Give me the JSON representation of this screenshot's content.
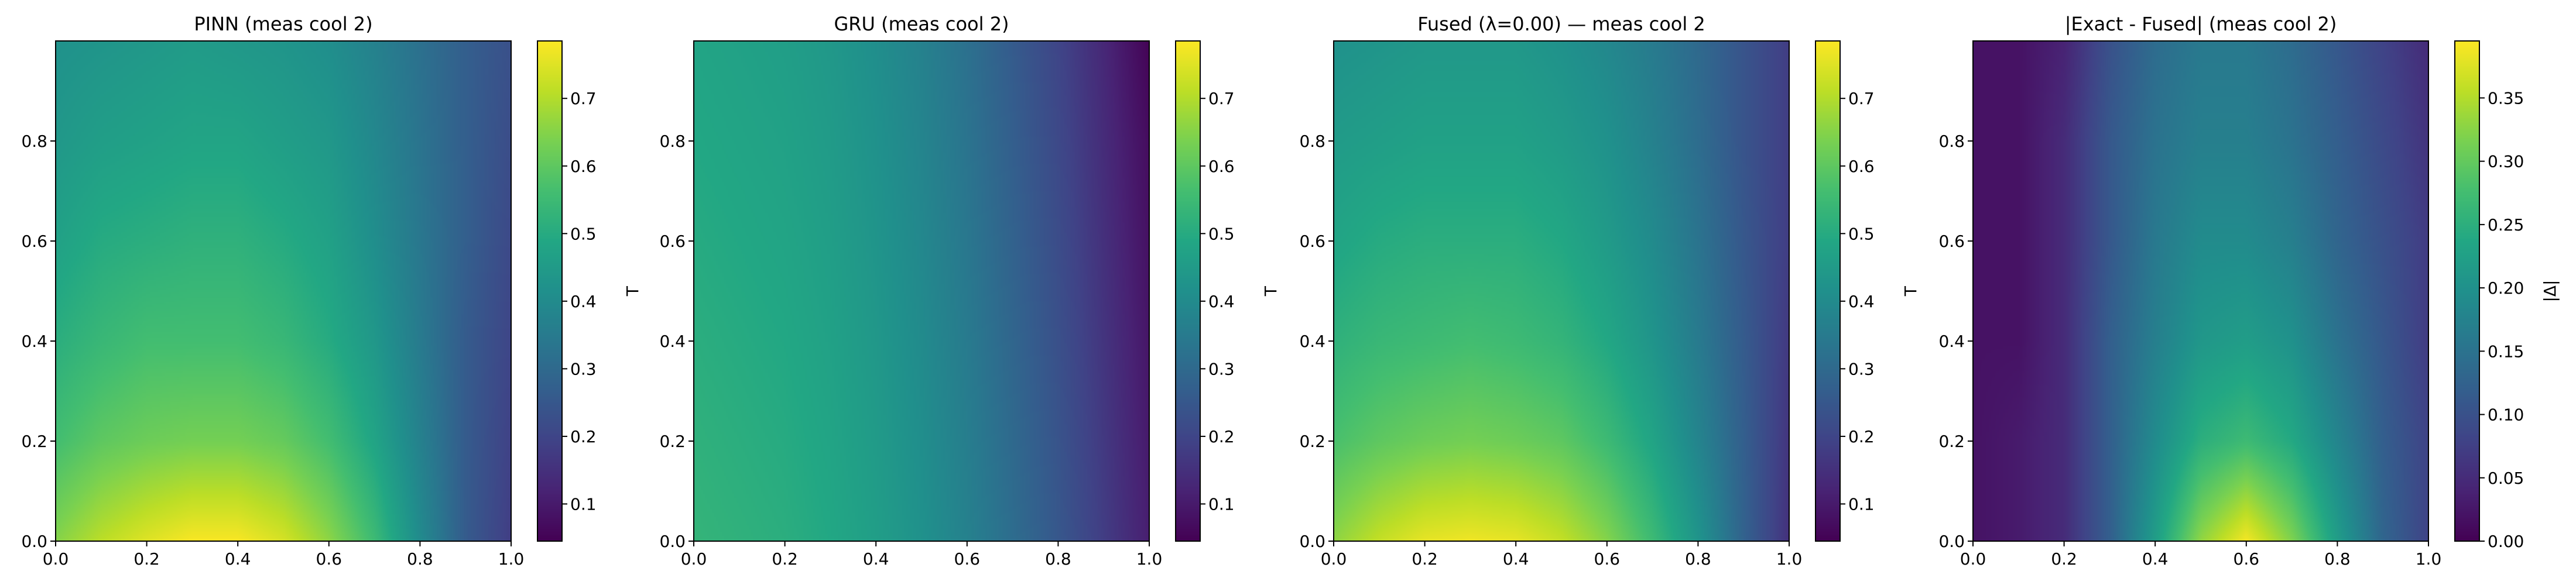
{
  "chart_data": [
    {
      "type": "heatmap",
      "title": "PINN (meas cool 2)",
      "xlabel": "",
      "ylabel": "",
      "colorbar_label": "T",
      "colormap": "viridis",
      "xlim": [
        0.0,
        1.0
      ],
      "ylim": [
        0.0,
        1.0
      ],
      "x_ticks": [
        "0.0",
        "0.2",
        "0.4",
        "0.6",
        "0.8",
        "1.0"
      ],
      "y_ticks": [
        "0.0",
        "0.2",
        "0.4",
        "0.6",
        "0.8"
      ],
      "clim": [
        0.045,
        0.785
      ],
      "colorbar_ticks": [
        "0.1",
        "0.2",
        "0.3",
        "0.4",
        "0.5",
        "0.6",
        "0.7"
      ],
      "x": [
        0.0,
        0.1,
        0.2,
        0.3,
        0.4,
        0.5,
        0.6,
        0.7,
        0.8,
        0.9,
        1.0
      ],
      "y": [
        0.0,
        0.2,
        0.4,
        0.6,
        0.8,
        1.0
      ],
      "z": [
        [
          0.65,
          0.71,
          0.75,
          0.78,
          0.78,
          0.74,
          0.66,
          0.55,
          0.4,
          0.26,
          0.18
        ],
        [
          0.56,
          0.6,
          0.62,
          0.63,
          0.63,
          0.61,
          0.56,
          0.48,
          0.37,
          0.26,
          0.19
        ],
        [
          0.51,
          0.54,
          0.56,
          0.56,
          0.56,
          0.54,
          0.5,
          0.44,
          0.35,
          0.26,
          0.2
        ],
        [
          0.47,
          0.5,
          0.51,
          0.52,
          0.52,
          0.5,
          0.47,
          0.41,
          0.34,
          0.27,
          0.21
        ],
        [
          0.44,
          0.46,
          0.47,
          0.48,
          0.48,
          0.46,
          0.44,
          0.39,
          0.33,
          0.27,
          0.22
        ],
        [
          0.42,
          0.43,
          0.44,
          0.45,
          0.44,
          0.43,
          0.41,
          0.37,
          0.32,
          0.27,
          0.23
        ]
      ]
    },
    {
      "type": "heatmap",
      "title": "GRU (meas cool 2)",
      "xlabel": "",
      "ylabel": "",
      "colorbar_label": "T",
      "colormap": "viridis",
      "xlim": [
        0.0,
        1.0
      ],
      "ylim": [
        0.0,
        1.0
      ],
      "x_ticks": [
        "0.0",
        "0.2",
        "0.4",
        "0.6",
        "0.8",
        "1.0"
      ],
      "y_ticks": [
        "0.0",
        "0.2",
        "0.4",
        "0.6",
        "0.8"
      ],
      "clim": [
        0.045,
        0.785
      ],
      "colorbar_ticks": [
        "0.1",
        "0.2",
        "0.3",
        "0.4",
        "0.5",
        "0.6",
        "0.7"
      ],
      "x": [
        0.0,
        0.1,
        0.2,
        0.3,
        0.4,
        0.5,
        0.6,
        0.7,
        0.8,
        0.9,
        1.0
      ],
      "y": [
        0.0,
        0.2,
        0.4,
        0.6,
        0.8,
        1.0
      ],
      "z": [
        [
          0.53,
          0.52,
          0.51,
          0.49,
          0.46,
          0.42,
          0.37,
          0.31,
          0.25,
          0.18,
          0.11
        ],
        [
          0.52,
          0.51,
          0.5,
          0.48,
          0.45,
          0.41,
          0.36,
          0.3,
          0.24,
          0.17,
          0.1
        ],
        [
          0.51,
          0.5,
          0.49,
          0.47,
          0.44,
          0.4,
          0.35,
          0.29,
          0.23,
          0.16,
          0.09
        ],
        [
          0.5,
          0.49,
          0.48,
          0.46,
          0.43,
          0.39,
          0.34,
          0.28,
          0.22,
          0.15,
          0.08
        ],
        [
          0.49,
          0.48,
          0.47,
          0.45,
          0.42,
          0.38,
          0.33,
          0.27,
          0.21,
          0.14,
          0.07
        ],
        [
          0.48,
          0.47,
          0.46,
          0.44,
          0.41,
          0.37,
          0.32,
          0.26,
          0.2,
          0.13,
          0.05
        ]
      ]
    },
    {
      "type": "heatmap",
      "title": "Fused (λ=0.00) — meas cool 2",
      "xlabel": "",
      "ylabel": "",
      "colorbar_label": "T",
      "colormap": "viridis",
      "xlim": [
        0.0,
        1.0
      ],
      "ylim": [
        0.0,
        1.0
      ],
      "x_ticks": [
        "0.0",
        "0.2",
        "0.4",
        "0.6",
        "0.8",
        "1.0"
      ],
      "y_ticks": [
        "0.0",
        "0.2",
        "0.4",
        "0.6",
        "0.8"
      ],
      "clim": [
        0.045,
        0.785
      ],
      "colorbar_ticks": [
        "0.1",
        "0.2",
        "0.3",
        "0.4",
        "0.5",
        "0.6",
        "0.7"
      ],
      "x": [
        0.0,
        0.1,
        0.2,
        0.3,
        0.4,
        0.5,
        0.6,
        0.7,
        0.8,
        0.9,
        1.0
      ],
      "y": [
        0.0,
        0.2,
        0.4,
        0.6,
        0.8,
        1.0
      ],
      "z": [
        [
          0.66,
          0.72,
          0.76,
          0.77,
          0.76,
          0.72,
          0.65,
          0.55,
          0.43,
          0.28,
          0.15
        ],
        [
          0.57,
          0.6,
          0.62,
          0.63,
          0.62,
          0.6,
          0.55,
          0.48,
          0.38,
          0.27,
          0.16
        ],
        [
          0.52,
          0.54,
          0.55,
          0.56,
          0.55,
          0.53,
          0.49,
          0.43,
          0.35,
          0.26,
          0.17
        ],
        [
          0.48,
          0.5,
          0.51,
          0.51,
          0.51,
          0.49,
          0.45,
          0.4,
          0.33,
          0.25,
          0.18
        ],
        [
          0.45,
          0.46,
          0.47,
          0.47,
          0.47,
          0.45,
          0.42,
          0.37,
          0.31,
          0.24,
          0.18
        ],
        [
          0.42,
          0.43,
          0.44,
          0.44,
          0.44,
          0.42,
          0.39,
          0.35,
          0.3,
          0.24,
          0.18
        ]
      ]
    },
    {
      "type": "heatmap",
      "title": "|Exact - Fused| (meas cool 2)",
      "xlabel": "",
      "ylabel": "",
      "colorbar_label": "|Δ|",
      "colormap": "viridis",
      "xlim": [
        0.0,
        1.0
      ],
      "ylim": [
        0.0,
        1.0
      ],
      "x_ticks": [
        "0.0",
        "0.2",
        "0.4",
        "0.6",
        "0.8",
        "1.0"
      ],
      "y_ticks": [
        "0.0",
        "0.2",
        "0.4",
        "0.6",
        "0.8"
      ],
      "clim": [
        0.0,
        0.395
      ],
      "colorbar_ticks": [
        "0.00",
        "0.05",
        "0.10",
        "0.15",
        "0.20",
        "0.25",
        "0.30",
        "0.35"
      ],
      "x": [
        0.0,
        0.1,
        0.2,
        0.3,
        0.4,
        0.5,
        0.6,
        0.7,
        0.8,
        0.9,
        1.0
      ],
      "y": [
        0.0,
        0.2,
        0.4,
        0.6,
        0.8,
        1.0
      ],
      "z": [
        [
          0.02,
          0.03,
          0.05,
          0.12,
          0.22,
          0.33,
          0.39,
          0.32,
          0.22,
          0.13,
          0.08
        ],
        [
          0.02,
          0.03,
          0.05,
          0.12,
          0.19,
          0.25,
          0.27,
          0.24,
          0.18,
          0.12,
          0.08
        ],
        [
          0.02,
          0.02,
          0.05,
          0.12,
          0.17,
          0.21,
          0.22,
          0.2,
          0.15,
          0.11,
          0.07
        ],
        [
          0.02,
          0.02,
          0.05,
          0.11,
          0.16,
          0.19,
          0.19,
          0.17,
          0.13,
          0.1,
          0.07
        ],
        [
          0.02,
          0.02,
          0.05,
          0.11,
          0.15,
          0.17,
          0.17,
          0.15,
          0.12,
          0.09,
          0.06
        ],
        [
          0.02,
          0.02,
          0.04,
          0.1,
          0.14,
          0.16,
          0.16,
          0.14,
          0.11,
          0.08,
          0.05
        ]
      ]
    }
  ]
}
